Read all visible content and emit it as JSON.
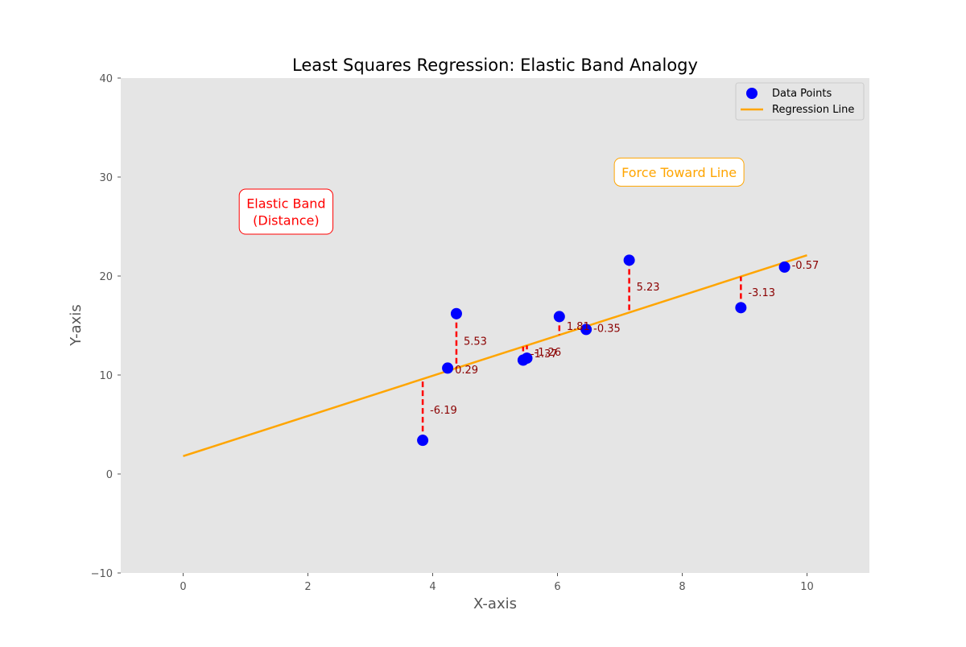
{
  "chart_data": {
    "type": "scatter",
    "title": "Least Squares Regression: Elastic Band Analogy",
    "xlabel": "X-axis",
    "ylabel": "Y-axis",
    "xlim": [
      -1,
      11
    ],
    "ylim": [
      -10,
      40
    ],
    "x_ticks": [
      0,
      2,
      4,
      6,
      8,
      10
    ],
    "y_ticks": [
      -10,
      0,
      10,
      20,
      30,
      40
    ],
    "grid": false,
    "legend_position": "top-right",
    "colors": {
      "background": "#e5e5e5",
      "points": "#0000ff",
      "line": "#ffa500",
      "residuals": "#ff0000",
      "residual_labels": "#8b0000",
      "elastic_annotation": "#ff0000",
      "force_annotation": "#ffa500"
    },
    "series": [
      {
        "name": "Data Points",
        "type": "scatter",
        "points": [
          {
            "x": 3.84,
            "y": 3.4,
            "residual": "-6.19"
          },
          {
            "x": 4.24,
            "y": 10.7,
            "residual": "0.29"
          },
          {
            "x": 4.38,
            "y": 16.2,
            "residual": "5.53"
          },
          {
            "x": 5.45,
            "y": 11.5,
            "residual": "-1.37"
          },
          {
            "x": 5.51,
            "y": 11.7,
            "residual": "-1.26"
          },
          {
            "x": 6.03,
            "y": 15.9,
            "residual": "1.81"
          },
          {
            "x": 6.46,
            "y": 14.6,
            "residual": "-0.35"
          },
          {
            "x": 7.15,
            "y": 21.6,
            "residual": "5.23"
          },
          {
            "x": 8.94,
            "y": 16.8,
            "residual": "-3.13"
          },
          {
            "x": 9.64,
            "y": 20.9,
            "residual": "-0.57"
          }
        ]
      },
      {
        "name": "Regression Line",
        "type": "line",
        "x": [
          0,
          10
        ],
        "y": [
          1.8,
          22.1
        ]
      }
    ],
    "annotations": [
      {
        "id": "elastic",
        "text": "Elastic Band\n(Distance)",
        "x": 1.65,
        "y": 26.5
      },
      {
        "id": "force",
        "text": "Force Toward Line",
        "x": 7.95,
        "y": 30.5
      }
    ]
  }
}
